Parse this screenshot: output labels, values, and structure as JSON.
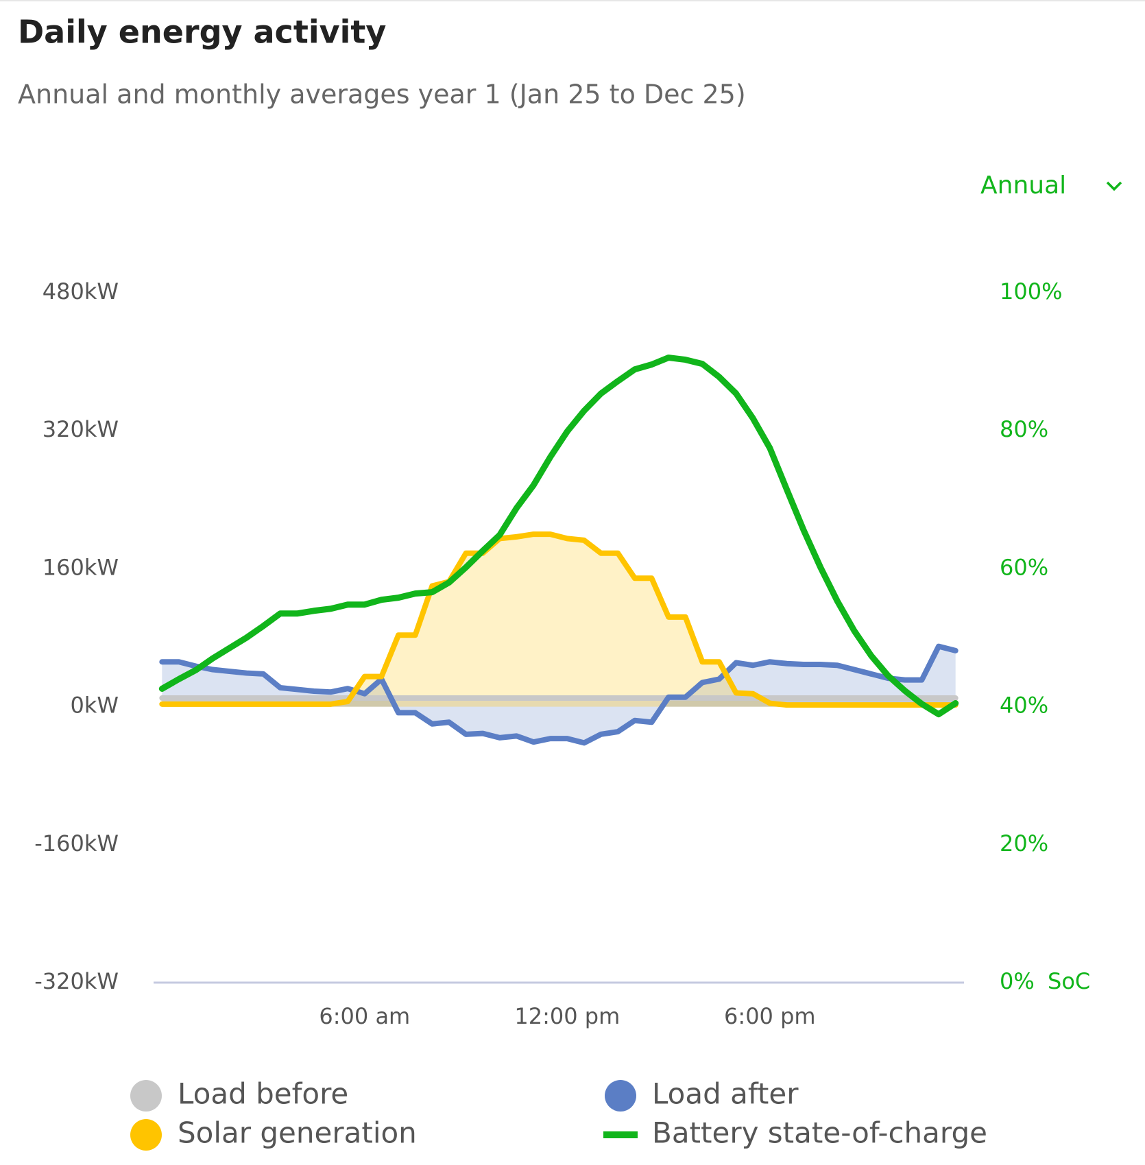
{
  "chart_data": {
    "type": "line",
    "title": "Daily energy activity",
    "subtitle": "Annual and monthly averages year 1 (Jan 25 to Dec 25)",
    "period_selector": "Annual",
    "y2label": "SoC",
    "x": [
      0,
      0.5,
      1,
      1.5,
      2,
      2.5,
      3,
      3.5,
      4,
      4.5,
      5,
      5.5,
      6,
      6.5,
      7,
      7.5,
      8,
      8.5,
      9,
      9.5,
      10,
      10.5,
      11,
      11.5,
      12,
      12.5,
      13,
      13.5,
      14,
      14.5,
      15,
      15.5,
      16,
      16.5,
      17,
      17.5,
      18,
      18.5,
      19,
      19.5,
      20,
      20.5,
      21,
      21.5,
      22,
      22.5,
      23,
      23.5
    ],
    "xlim": [
      -0.25,
      23.75
    ],
    "xticks": [
      {
        "value": 6,
        "label": "6:00 am"
      },
      {
        "value": 12,
        "label": "12:00 pm"
      },
      {
        "value": 18,
        "label": "6:00 pm"
      }
    ],
    "ylim": [
      -320,
      480
    ],
    "yticks": [
      {
        "value": -320,
        "label": "-320kW"
      },
      {
        "value": -160,
        "label": "-160kW"
      },
      {
        "value": 0,
        "label": "0kW"
      },
      {
        "value": 160,
        "label": "160kW"
      },
      {
        "value": 320,
        "label": "320kW"
      },
      {
        "value": 480,
        "label": "480kW"
      }
    ],
    "y2lim": [
      0,
      100
    ],
    "y2ticks": [
      {
        "value": 0,
        "label": "0%"
      },
      {
        "value": 20,
        "label": "20%"
      },
      {
        "value": 40,
        "label": "40%"
      },
      {
        "value": 60,
        "label": "60%"
      },
      {
        "value": 80,
        "label": "80%"
      },
      {
        "value": 100,
        "label": "100%"
      }
    ],
    "legend": "bottom",
    "series": [
      {
        "name": "Load before",
        "color": "#c8c8c8",
        "area": true,
        "values": [
          10,
          10,
          10,
          10,
          10,
          10,
          10,
          10,
          10,
          10,
          10,
          10,
          10,
          10,
          10,
          10,
          10,
          10,
          10,
          10,
          10,
          10,
          10,
          10,
          10,
          10,
          10,
          10,
          10,
          10,
          10,
          10,
          10,
          10,
          10,
          10,
          10,
          10,
          10,
          10,
          10,
          10,
          10,
          10,
          10,
          10,
          10,
          10
        ]
      },
      {
        "name": "Load after",
        "color": "#5b7ec5",
        "area": true,
        "values": [
          52,
          52,
          47,
          43,
          41,
          39,
          38,
          22,
          20,
          18,
          17,
          21,
          15,
          32,
          -7,
          -7,
          -20,
          -18,
          -32,
          -31,
          -36,
          -34,
          -41,
          -37,
          -37,
          -42,
          -32,
          -29,
          -16,
          -18,
          11,
          11,
          28,
          32,
          51,
          48,
          52,
          50,
          49,
          49,
          48,
          43,
          38,
          33,
          31,
          31,
          70,
          65
        ]
      },
      {
        "name": "Solar generation",
        "color": "#ffc400",
        "area": true,
        "values": [
          3,
          3,
          3,
          3,
          3,
          3,
          3,
          3,
          3,
          3,
          3,
          6,
          35,
          35,
          83,
          83,
          140,
          145,
          178,
          178,
          195,
          197,
          200,
          200,
          195,
          193,
          178,
          178,
          149,
          149,
          104,
          104,
          52,
          52,
          16,
          15,
          4,
          2,
          2,
          2,
          2,
          2,
          2,
          2,
          2,
          2,
          2,
          2
        ]
      },
      {
        "name": "Battery state-of-charge",
        "color": "#11b51b",
        "axis": "y2",
        "values": [
          42.6,
          44,
          45.3,
          47,
          48.5,
          50,
          51.7,
          53.5,
          53.5,
          53.9,
          54.2,
          54.8,
          54.8,
          55.5,
          55.8,
          56.4,
          56.6,
          58,
          60.2,
          62.6,
          64.9,
          68.8,
          72.1,
          76.2,
          79.9,
          82.9,
          85.4,
          87.2,
          88.9,
          89.6,
          90.6,
          90.3,
          89.7,
          87.8,
          85.4,
          81.8,
          77.5,
          71.5,
          65.6,
          60.2,
          55.3,
          51,
          47.4,
          44.5,
          42.3,
          40.4,
          38.9,
          40.5
        ]
      }
    ]
  }
}
